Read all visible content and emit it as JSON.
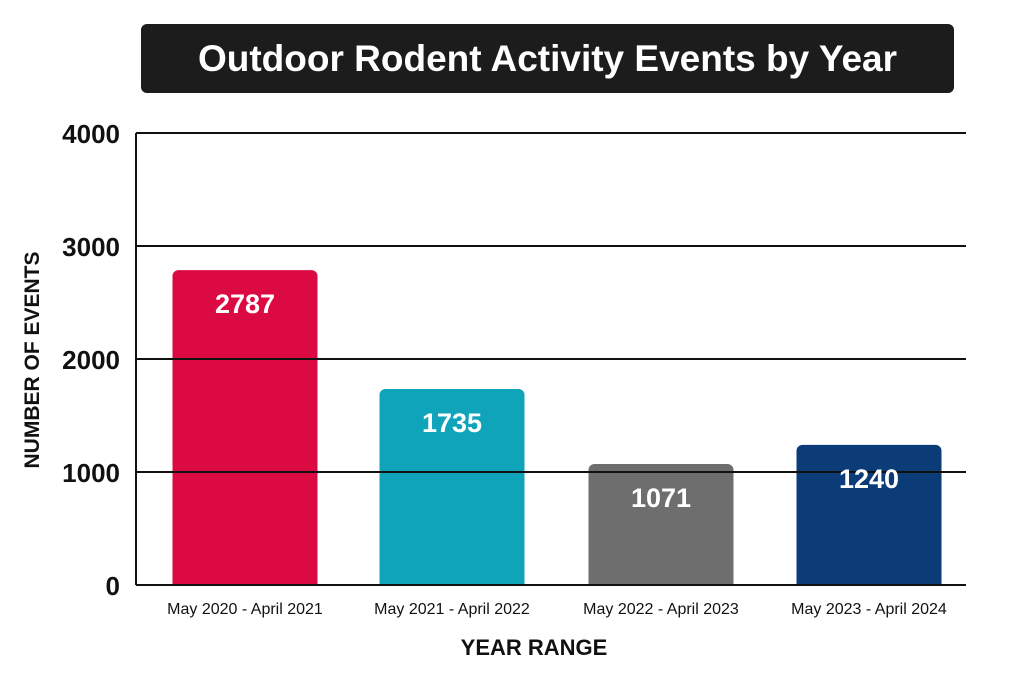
{
  "colors": {
    "title_bg": "#1c1c1c",
    "title_text": "#ffffff",
    "gridline": "#111111",
    "bar_label": "#ffffff"
  },
  "chart_data": {
    "type": "bar",
    "title": "Outdoor Rodent Activity Events by Year",
    "xlabel": "YEAR RANGE",
    "ylabel": "NUMBER OF EVENTS",
    "categories": [
      "May 2020 - April 2021",
      "May 2021 - April 2022",
      "May 2022 - April 2023",
      "May 2023 - April 2024"
    ],
    "values": [
      2787,
      1735,
      1071,
      1240
    ],
    "bar_colors": [
      "#dc0a43",
      "#0fa4ba",
      "#6e6e6e",
      "#0b3c78"
    ],
    "data_labels": [
      "2787",
      "1735",
      "1071",
      "1240"
    ],
    "ylim": [
      0,
      4000
    ],
    "yticks": [
      0,
      1000,
      2000,
      3000,
      4000
    ],
    "ytick_labels": [
      "0",
      "1000",
      "2000",
      "3000",
      "4000"
    ],
    "grid": "horizontal",
    "legend": "none"
  }
}
